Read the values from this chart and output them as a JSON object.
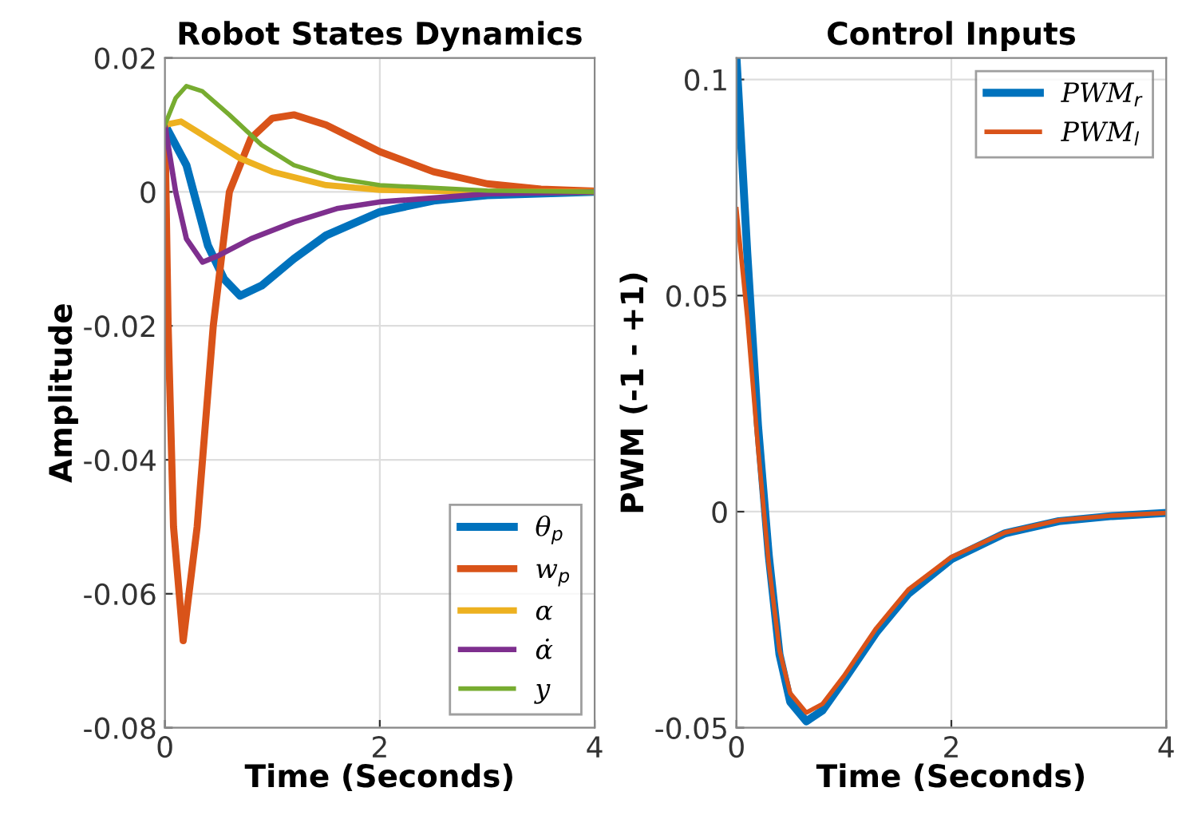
{
  "chart_data": [
    {
      "type": "line",
      "title": "Robot States Dynamics",
      "xlabel": "Time (Seconds)",
      "ylabel": "Amplitude",
      "xlim": [
        0,
        4
      ],
      "ylim": [
        -0.08,
        0.02
      ],
      "xticks": [
        0,
        2,
        4
      ],
      "yticks": [
        -0.08,
        -0.06,
        -0.04,
        -0.02,
        0,
        0.02
      ],
      "grid": true,
      "legend": "bottom right",
      "series": [
        {
          "name": "θ$_{p}$",
          "color": "#0072bd",
          "x": [
            0,
            0.2,
            0.4,
            0.55,
            0.7,
            0.9,
            1.2,
            1.5,
            2,
            2.5,
            3,
            4
          ],
          "values": [
            0.01,
            0.004,
            -0.008,
            -0.013,
            -0.0155,
            -0.014,
            -0.01,
            -0.0065,
            -0.003,
            -0.0013,
            -0.0005,
            0
          ]
        },
        {
          "name": "w$_{p}$",
          "color": "#d95319",
          "x": [
            0,
            0.03,
            0.08,
            0.17,
            0.3,
            0.45,
            0.6,
            0.8,
            1.0,
            1.2,
            1.5,
            2,
            2.5,
            3,
            3.5,
            4
          ],
          "values": [
            0.01,
            -0.02,
            -0.05,
            -0.067,
            -0.05,
            -0.02,
            0.0,
            0.008,
            0.011,
            0.0115,
            0.01,
            0.006,
            0.003,
            0.0012,
            0.0004,
            0.0001
          ]
        },
        {
          "name": "α",
          "color": "#edb120",
          "x": [
            0,
            0.15,
            0.4,
            0.7,
            1.0,
            1.5,
            2,
            3,
            4
          ],
          "values": [
            0.01,
            0.0105,
            0.008,
            0.005,
            0.003,
            0.001,
            0.0003,
            0,
            0
          ]
        },
        {
          "name": "α̇",
          "color": "#7e2f8e",
          "x": [
            0,
            0.1,
            0.2,
            0.35,
            0.5,
            0.8,
            1.2,
            1.6,
            2,
            3,
            4
          ],
          "values": [
            0.01,
            0.0,
            -0.007,
            -0.0105,
            -0.0095,
            -0.007,
            -0.0045,
            -0.0025,
            -0.0015,
            -0.0003,
            0
          ]
        },
        {
          "name": "y",
          "color": "#77ac30",
          "x": [
            0,
            0.1,
            0.2,
            0.35,
            0.6,
            0.9,
            1.2,
            1.6,
            2,
            3,
            4
          ],
          "values": [
            0.01,
            0.014,
            0.0158,
            0.015,
            0.0115,
            0.007,
            0.004,
            0.002,
            0.001,
            0.0002,
            0
          ]
        }
      ]
    },
    {
      "type": "line",
      "title": "Control Inputs",
      "xlabel": "Time (Seconds)",
      "ylabel": "PWM (-1 - +1)",
      "xlim": [
        0,
        4
      ],
      "ylim": [
        -0.05,
        0.105
      ],
      "xticks": [
        0,
        2,
        4
      ],
      "yticks": [
        -0.05,
        0,
        0.05,
        0.1
      ],
      "grid": true,
      "legend": "top right",
      "series": [
        {
          "name": "PWM$_{r}$",
          "color": "#0072bd",
          "x": [
            0,
            0.1,
            0.2,
            0.3,
            0.4,
            0.5,
            0.65,
            0.8,
            1.0,
            1.3,
            1.6,
            2,
            2.5,
            3,
            3.5,
            4
          ],
          "values": [
            0.105,
            0.06,
            0.02,
            -0.01,
            -0.033,
            -0.044,
            -0.0485,
            -0.046,
            -0.039,
            -0.028,
            -0.019,
            -0.011,
            -0.005,
            -0.0022,
            -0.001,
            -0.0003
          ]
        },
        {
          "name": "PWM$_{l}$",
          "color": "#d95319",
          "x": [
            0,
            0.1,
            0.2,
            0.3,
            0.4,
            0.5,
            0.65,
            0.8,
            1.0,
            1.3,
            1.6,
            2,
            2.5,
            3,
            3.5,
            4
          ],
          "values": [
            0.07,
            0.045,
            0.015,
            -0.012,
            -0.032,
            -0.042,
            -0.0465,
            -0.0445,
            -0.038,
            -0.027,
            -0.018,
            -0.0105,
            -0.0048,
            -0.002,
            -0.0009,
            -0.0003
          ]
        }
      ]
    }
  ]
}
